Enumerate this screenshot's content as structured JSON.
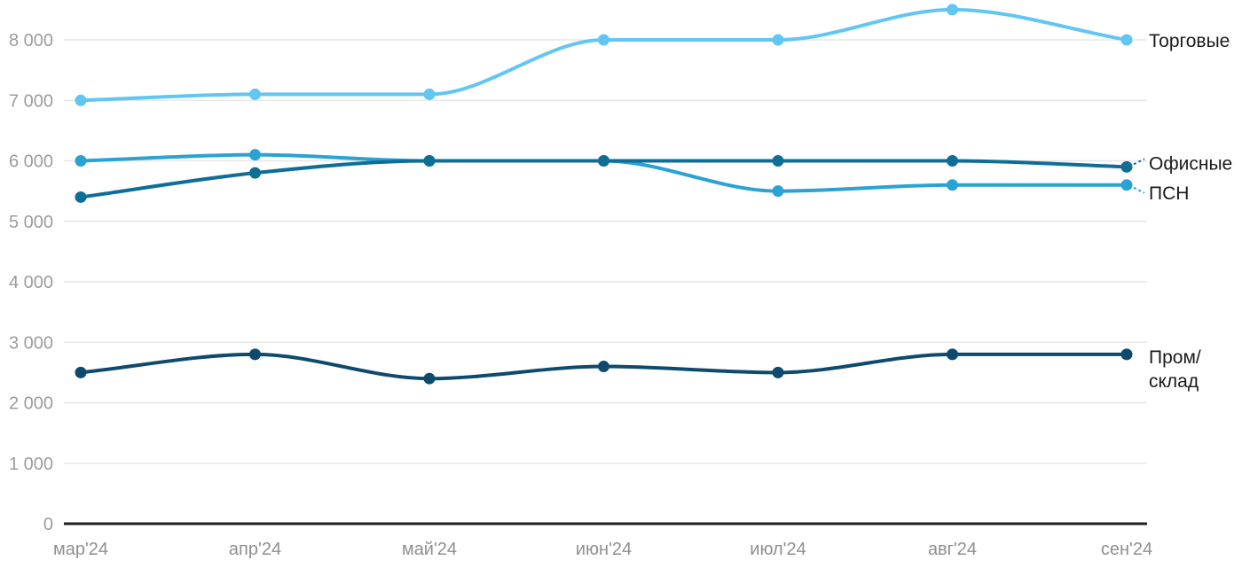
{
  "chart_data": {
    "type": "line",
    "title": "",
    "xlabel": "",
    "ylabel": "",
    "x_labels": [
      "мар'24",
      "апр'24",
      "май'24",
      "июн'24",
      "июл'24",
      "авг'24",
      "сен'24"
    ],
    "y_ticks": [
      0,
      1000,
      2000,
      3000,
      4000,
      5000,
      6000,
      7000,
      8000
    ],
    "y_tick_labels": [
      "0",
      "1 000",
      "2 000",
      "3 000",
      "4 000",
      "5 000",
      "6 000",
      "7 000",
      "8 000"
    ],
    "ylim": [
      0,
      8700
    ],
    "grid": "horizontal",
    "legend_position": "right-of-line-ends",
    "series": [
      {
        "name": "Торговые",
        "color": "#62C6F2",
        "values": [
          7000,
          7100,
          7100,
          8000,
          8000,
          8500,
          8000
        ],
        "label_lines": [
          "Торговые"
        ],
        "label_dy": 0,
        "leader": false,
        "z": 0
      },
      {
        "name": "Офисные",
        "color": "#0F6E96",
        "values": [
          5400,
          5800,
          6000,
          6000,
          6000,
          6000,
          5900
        ],
        "label_lines": [
          "Офисные"
        ],
        "label_dy": -5,
        "leader": true,
        "z": 2
      },
      {
        "name": "ПСН",
        "color": "#29A2D4",
        "values": [
          6000,
          6100,
          6000,
          6000,
          5500,
          5600,
          5600
        ],
        "label_lines": [
          "ПСН"
        ],
        "label_dy": 8,
        "leader": true,
        "z": 1
      },
      {
        "name": "Пром/склад",
        "color": "#0D4A6E",
        "values": [
          2500,
          2800,
          2400,
          2600,
          2500,
          2800,
          2800
        ],
        "label_lines": [
          "Пром/",
          "склад"
        ],
        "label_dy": 2,
        "leader": false,
        "z": 3
      }
    ],
    "colors": {
      "grid": "#E7E7E7",
      "axis": "#1F1F1F",
      "x_tick_text": "#8F8F8F",
      "y_tick_text": "#9C9C9C",
      "label_text": "#1A1A1A"
    }
  }
}
